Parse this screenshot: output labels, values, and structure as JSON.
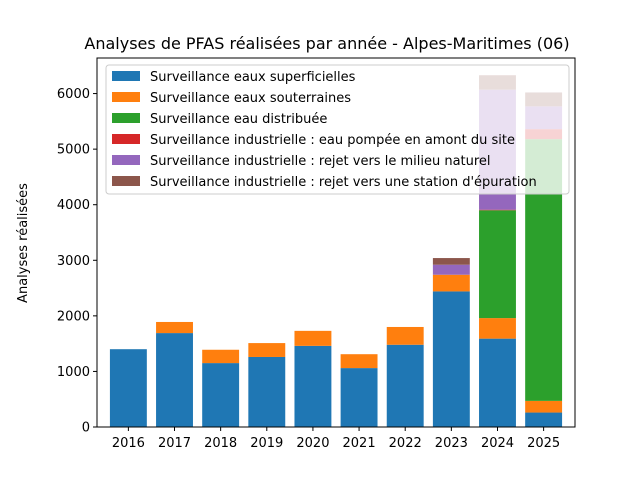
{
  "chart_data": {
    "type": "bar",
    "stacked": true,
    "title": "Analyses de PFAS réalisées par année - Alpes-Maritimes (06)",
    "xlabel": "",
    "ylabel": "Analyses réalisées",
    "ylim": [
      0,
      6640
    ],
    "yticks": [
      0,
      1000,
      2000,
      3000,
      4000,
      5000,
      6000
    ],
    "categories": [
      "2016",
      "2017",
      "2018",
      "2019",
      "2020",
      "2021",
      "2022",
      "2023",
      "2024",
      "2025"
    ],
    "legend_position": "top-left",
    "series": [
      {
        "name": "Surveillance eaux superficielles",
        "color": "#1f77b4",
        "values": [
          1400,
          1690,
          1150,
          1260,
          1460,
          1060,
          1480,
          2440,
          1590,
          260
        ]
      },
      {
        "name": "Surveillance eaux souterraines",
        "color": "#ff7f0e",
        "values": [
          0,
          200,
          240,
          250,
          270,
          250,
          320,
          300,
          370,
          210
        ]
      },
      {
        "name": "Surveillance eau distribuée",
        "color": "#2ca02c",
        "values": [
          0,
          0,
          0,
          0,
          0,
          0,
          0,
          0,
          1940,
          4710
        ]
      },
      {
        "name": "Surveillance industrielle : eau pompée en amont du site",
        "color": "#d62728",
        "values": [
          0,
          0,
          0,
          0,
          0,
          0,
          0,
          0,
          10,
          180
        ]
      },
      {
        "name": "Surveillance industrielle : rejet vers le milieu naturel",
        "color": "#9467bd",
        "values": [
          0,
          0,
          0,
          0,
          0,
          0,
          0,
          180,
          2160,
          410
        ]
      },
      {
        "name": "Surveillance industrielle : rejet vers une station d'épuration",
        "color": "#8c564b",
        "values": [
          0,
          0,
          0,
          0,
          0,
          0,
          0,
          120,
          260,
          250
        ]
      }
    ]
  }
}
